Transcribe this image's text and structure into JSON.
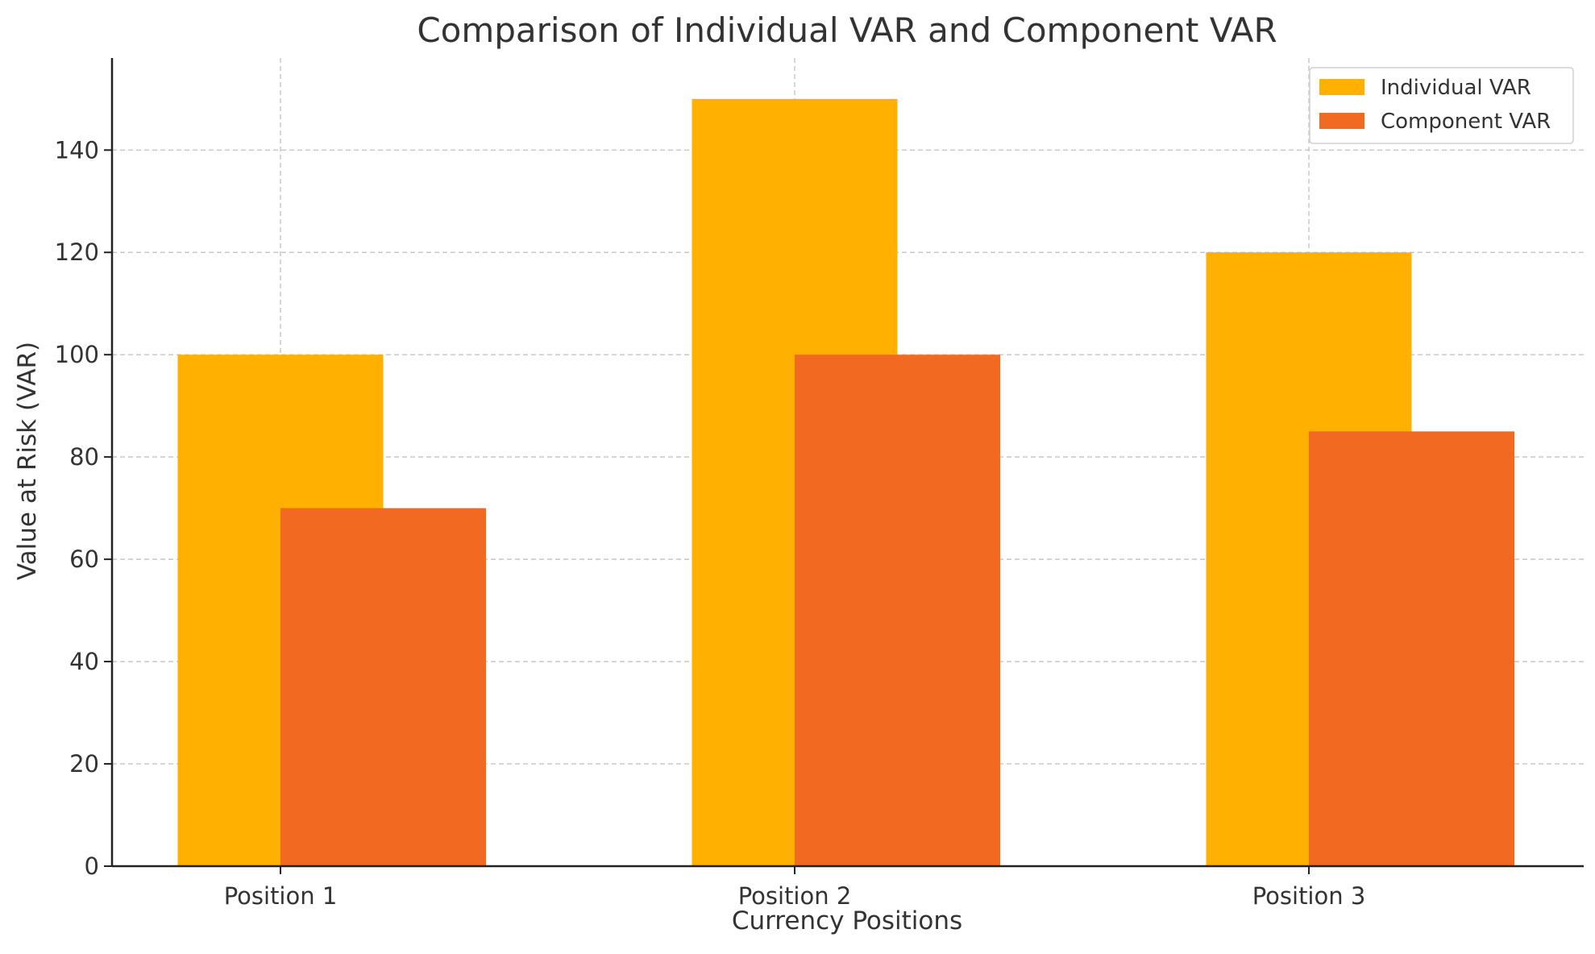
{
  "chart_data": {
    "type": "bar",
    "title": "Comparison of Individual VAR and Component VAR",
    "xlabel": "Currency Positions",
    "ylabel": "Value at Risk (VAR)",
    "categories": [
      "Position 1",
      "Position 2",
      "Position 3"
    ],
    "series": [
      {
        "name": "Individual VAR",
        "values": [
          100,
          150,
          120
        ],
        "color": "#FFB000"
      },
      {
        "name": "Component VAR",
        "values": [
          70,
          100,
          85
        ],
        "color": "#F26A22"
      }
    ],
    "ylim": [
      0,
      158
    ],
    "yticks": [
      0,
      20,
      40,
      60,
      80,
      100,
      120,
      140
    ],
    "grid": true,
    "legend_position": "top-right"
  }
}
